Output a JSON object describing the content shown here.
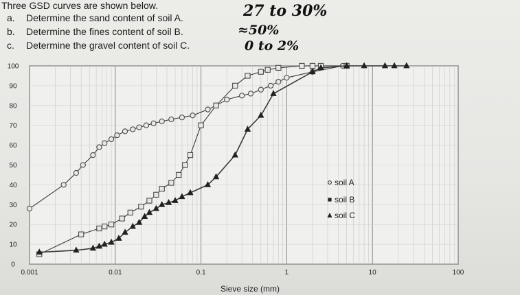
{
  "header": {
    "title": "Three GSD curves are shown below.",
    "questions": [
      {
        "label": "a.",
        "text": "Determine the sand content of soil A."
      },
      {
        "label": "b.",
        "text": "Determine the fines content of soil B."
      },
      {
        "label": "c.",
        "text": "Determine the gravel content of soil C."
      }
    ],
    "handwritten": [
      "27 to 30%",
      "≈50%",
      "0 to 2%"
    ]
  },
  "chart_data": {
    "type": "line",
    "title": "",
    "xlabel": "Sieve size (mm)",
    "ylabel": "",
    "xscale": "log",
    "xlim": [
      0.001,
      100
    ],
    "ylim": [
      0,
      100
    ],
    "xticks": [
      0.001,
      0.01,
      0.1,
      1,
      10,
      100
    ],
    "xtick_labels": [
      "0.001",
      "0.01",
      "0.1",
      "1",
      "10",
      "100"
    ],
    "yticks": [
      0,
      10,
      20,
      30,
      40,
      50,
      60,
      70,
      80,
      90,
      100
    ],
    "ytick_labels": [
      "0",
      "10",
      "20",
      "30",
      "40",
      "50",
      "60",
      "70",
      "80",
      "90",
      "100"
    ],
    "legend_position": "right-middle",
    "series": [
      {
        "name": "soil A",
        "marker": "circle",
        "points": [
          [
            0.001,
            28
          ],
          [
            0.0025,
            40
          ],
          [
            0.0035,
            46
          ],
          [
            0.0042,
            50
          ],
          [
            0.0055,
            55
          ],
          [
            0.0065,
            59
          ],
          [
            0.0075,
            61
          ],
          [
            0.009,
            63
          ],
          [
            0.0105,
            65
          ],
          [
            0.013,
            67
          ],
          [
            0.016,
            68
          ],
          [
            0.019,
            69
          ],
          [
            0.023,
            70
          ],
          [
            0.028,
            71
          ],
          [
            0.035,
            72
          ],
          [
            0.045,
            73
          ],
          [
            0.06,
            74
          ],
          [
            0.08,
            75
          ],
          [
            0.12,
            78
          ],
          [
            0.15,
            80
          ],
          [
            0.2,
            83
          ],
          [
            0.3,
            85
          ],
          [
            0.38,
            86
          ],
          [
            0.5,
            88
          ],
          [
            0.65,
            90
          ],
          [
            0.8,
            92
          ],
          [
            1.0,
            94
          ],
          [
            2.0,
            97
          ],
          [
            4.5,
            100
          ]
        ]
      },
      {
        "name": "soil B",
        "marker": "square",
        "points": [
          [
            0.0013,
            5
          ],
          [
            0.004,
            15
          ],
          [
            0.0065,
            18
          ],
          [
            0.0075,
            19
          ],
          [
            0.009,
            20
          ],
          [
            0.012,
            23
          ],
          [
            0.015,
            26
          ],
          [
            0.02,
            29
          ],
          [
            0.025,
            32
          ],
          [
            0.03,
            35
          ],
          [
            0.035,
            38
          ],
          [
            0.045,
            41
          ],
          [
            0.055,
            45
          ],
          [
            0.065,
            50
          ],
          [
            0.075,
            55
          ],
          [
            0.1,
            70
          ],
          [
            0.15,
            80
          ],
          [
            0.25,
            90
          ],
          [
            0.35,
            95
          ],
          [
            0.5,
            97
          ],
          [
            0.6,
            98
          ],
          [
            0.8,
            99
          ],
          [
            1.5,
            100
          ],
          [
            2.0,
            100
          ],
          [
            2.5,
            100
          ],
          [
            5,
            100
          ]
        ]
      },
      {
        "name": "soil C",
        "marker": "triangle",
        "points": [
          [
            0.0013,
            6
          ],
          [
            0.0035,
            7
          ],
          [
            0.0055,
            8
          ],
          [
            0.0065,
            9
          ],
          [
            0.0075,
            10
          ],
          [
            0.009,
            11
          ],
          [
            0.011,
            13
          ],
          [
            0.013,
            16
          ],
          [
            0.016,
            19
          ],
          [
            0.019,
            21
          ],
          [
            0.022,
            24
          ],
          [
            0.025,
            26
          ],
          [
            0.03,
            28
          ],
          [
            0.035,
            30
          ],
          [
            0.042,
            31
          ],
          [
            0.05,
            32
          ],
          [
            0.06,
            34
          ],
          [
            0.075,
            36
          ],
          [
            0.12,
            40
          ],
          [
            0.15,
            44
          ],
          [
            0.25,
            55
          ],
          [
            0.35,
            68
          ],
          [
            0.5,
            75
          ],
          [
            0.7,
            86
          ],
          [
            2.0,
            97
          ],
          [
            2.5,
            99
          ],
          [
            5,
            100
          ],
          [
            8,
            100
          ],
          [
            14,
            100
          ],
          [
            18,
            100
          ],
          [
            25,
            100
          ]
        ]
      }
    ]
  }
}
